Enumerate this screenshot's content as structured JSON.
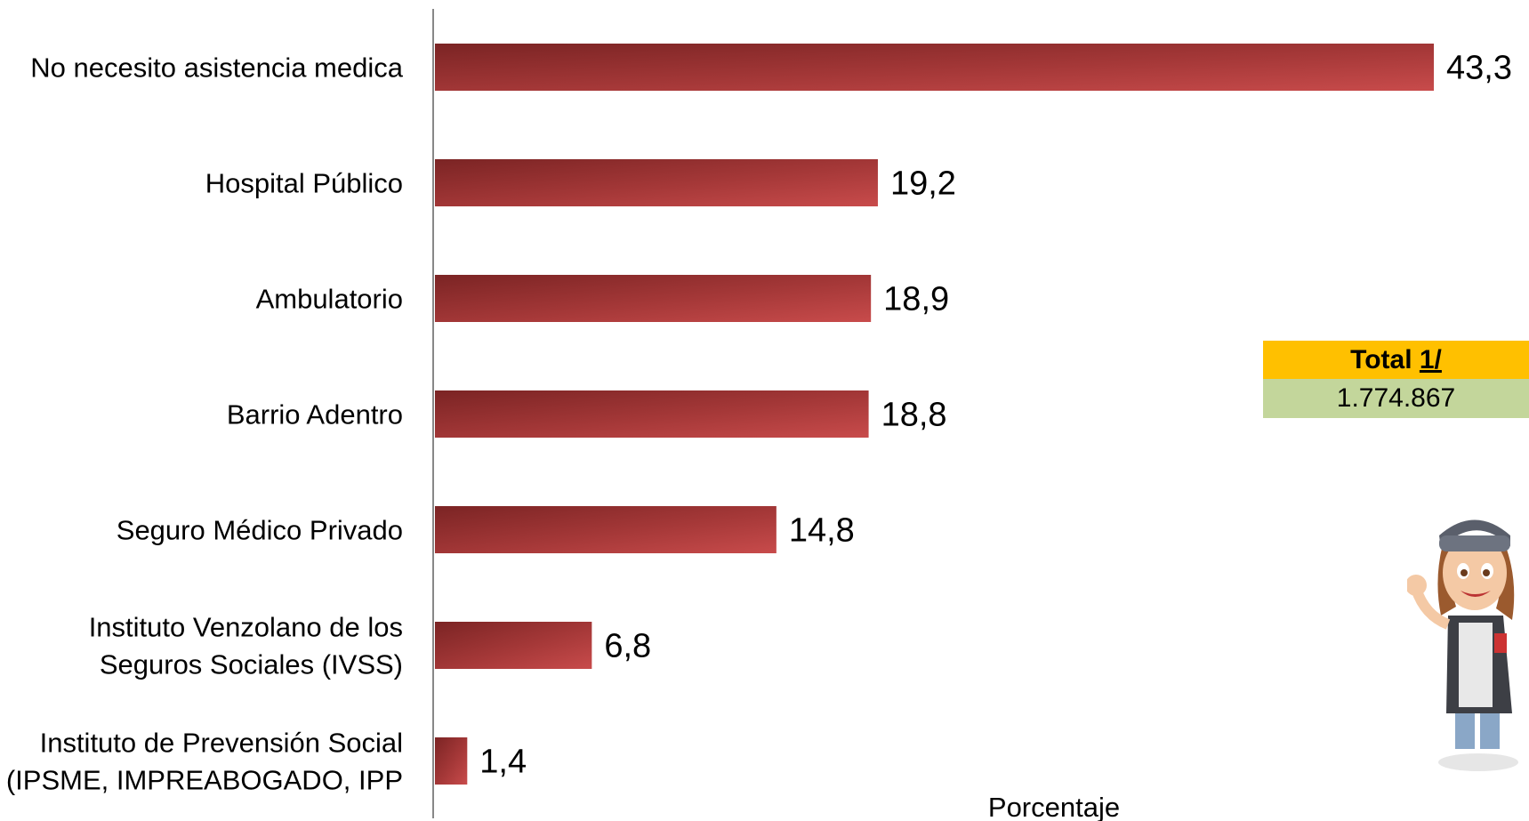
{
  "chart_data": {
    "type": "bar",
    "orientation": "horizontal",
    "categories": [
      [
        "No necesito asistencia medica"
      ],
      [
        "Hospital Público"
      ],
      [
        "Ambulatorio"
      ],
      [
        "Barrio Adentro"
      ],
      [
        "Seguro Médico Privado"
      ],
      [
        "Instituto Venzolano de los",
        "Seguros Sociales (IVSS)"
      ],
      [
        "Instituto de Prevensión Social",
        "(IPSME, IMPREABOGADO, IPP"
      ]
    ],
    "values": [
      43.3,
      19.2,
      18.9,
      18.8,
      14.8,
      6.8,
      1.4
    ],
    "value_labels": [
      "43,3",
      "19,2",
      "18,9",
      "18,8",
      "14,8",
      "6,8",
      "1,4"
    ],
    "xlabel": "Porcentaje",
    "xlim": [
      0,
      43.3
    ],
    "grid": false,
    "bar_color": "#A83A3A"
  },
  "total": {
    "label": "Total",
    "footnote": "1/",
    "value": "1.774.867",
    "header_color": "#FFC000",
    "value_color": "#C3D69B"
  },
  "mascot": {
    "icon": "census-worker-mascot"
  }
}
